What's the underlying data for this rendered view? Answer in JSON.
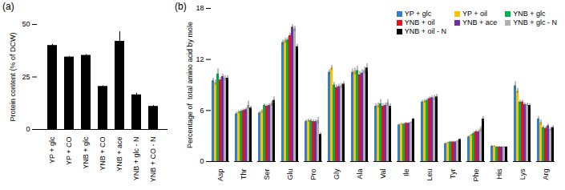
{
  "chart_data": [
    {
      "type": "bar",
      "title": "(a)",
      "y_label": "Protein content (% of DCW)",
      "categories": [
        "YP + glc",
        "YP + CO",
        "YNB + glc",
        "YNB + CO",
        "YNB + ace",
        "YNB + glc - N",
        "YNB + CO - N"
      ],
      "values": [
        40,
        34.5,
        35.3,
        20.5,
        42,
        16.5,
        11
      ],
      "errors": [
        0.5,
        0.3,
        0.4,
        0.3,
        4.5,
        0.8,
        0.4
      ],
      "color": "#000000",
      "ylim": [
        0,
        50
      ],
      "yticks": [
        0,
        25,
        50
      ]
    },
    {
      "type": "bar",
      "title": "(b)",
      "y_label": "Percentage of  total amino acid by mole",
      "categories": [
        "Asp",
        "Thr",
        "Ser",
        "Glu",
        "Pro",
        "Gly",
        "Ala",
        "Val",
        "Ile",
        "Leu",
        "Tyr",
        "Phe",
        "His",
        "Lys",
        "Arg"
      ],
      "series": [
        {
          "name": "YP + glc",
          "color": "#2F7FD0",
          "values": [
            9.5,
            5.6,
            5.7,
            14.0,
            4.7,
            10.5,
            10.5,
            6.5,
            4.3,
            7.0,
            2.1,
            2.9,
            1.8,
            8.9,
            5.0
          ],
          "errors": [
            0.3,
            0.2,
            0.2,
            0.3,
            0.2,
            0.3,
            0.4,
            0.3,
            0.1,
            0.2,
            0.1,
            0.1,
            0.1,
            0.5,
            0.3
          ]
        },
        {
          "name": "YP + oil",
          "color": "#FFC000",
          "values": [
            9.3,
            5.8,
            5.9,
            14.2,
            4.8,
            11.0,
            10.6,
            6.6,
            4.4,
            7.1,
            2.2,
            3.1,
            1.8,
            8.3,
            4.6
          ],
          "errors": [
            0.3,
            0.2,
            0.2,
            0.3,
            0.2,
            0.3,
            0.4,
            0.3,
            0.1,
            0.2,
            0.1,
            0.1,
            0.1,
            0.3,
            0.3
          ]
        },
        {
          "name": "YNB + glc",
          "color": "#00B050",
          "values": [
            10.3,
            5.9,
            6.6,
            14.3,
            4.8,
            9.0,
            10.7,
            6.8,
            4.4,
            7.2,
            2.3,
            3.3,
            1.7,
            7.0,
            4.0
          ],
          "errors": [
            0.6,
            0.2,
            0.2,
            0.3,
            0.2,
            0.3,
            0.5,
            0.5,
            0.1,
            0.2,
            0.1,
            0.2,
            0.1,
            0.2,
            0.2
          ]
        },
        {
          "name": "YNB + oil",
          "color": "#E8101A",
          "values": [
            9.6,
            6.0,
            6.5,
            14.8,
            4.7,
            8.7,
            10.2,
            6.5,
            4.5,
            7.4,
            2.3,
            3.5,
            1.7,
            7.0,
            3.9
          ],
          "errors": [
            0.3,
            0.2,
            0.2,
            0.3,
            0.2,
            0.3,
            0.4,
            0.3,
            0.1,
            0.2,
            0.1,
            0.2,
            0.1,
            0.2,
            0.2
          ]
        },
        {
          "name": "YNB + ace",
          "color": "#7030A0",
          "values": [
            10.0,
            6.1,
            6.6,
            15.8,
            4.7,
            8.8,
            10.4,
            6.6,
            4.5,
            7.5,
            2.3,
            3.5,
            1.7,
            6.7,
            4.2
          ],
          "errors": [
            0.3,
            0.2,
            0.2,
            0.3,
            0.2,
            0.3,
            0.4,
            0.3,
            0.1,
            0.2,
            0.1,
            0.2,
            0.1,
            0.2,
            0.2
          ]
        },
        {
          "name": "YNB + glc - N",
          "color": "#B0B0B0",
          "values": [
            9.8,
            6.6,
            6.8,
            15.6,
            4.8,
            8.9,
            10.7,
            6.9,
            4.6,
            7.5,
            2.4,
            3.8,
            1.7,
            6.7,
            3.8
          ],
          "errors": [
            0.3,
            0.5,
            0.3,
            0.3,
            0.4,
            0.3,
            0.4,
            0.4,
            0.1,
            0.3,
            0.1,
            0.3,
            0.1,
            0.2,
            0.2
          ]
        },
        {
          "name": "YNB + oil - N",
          "color": "#000000",
          "values": [
            9.8,
            6.3,
            7.2,
            13.5,
            3.2,
            9.1,
            11.0,
            6.5,
            5.0,
            7.6,
            2.6,
            5.0,
            1.7,
            6.6,
            4.0
          ],
          "errors": [
            0.3,
            0.2,
            0.4,
            0.3,
            0.2,
            0.3,
            0.5,
            0.3,
            0.1,
            0.3,
            0.1,
            0.3,
            0.1,
            0.2,
            0.2
          ]
        }
      ],
      "ylim": [
        0,
        18
      ],
      "yticks": [
        0,
        6,
        12,
        18
      ],
      "legend": "top-right"
    }
  ]
}
